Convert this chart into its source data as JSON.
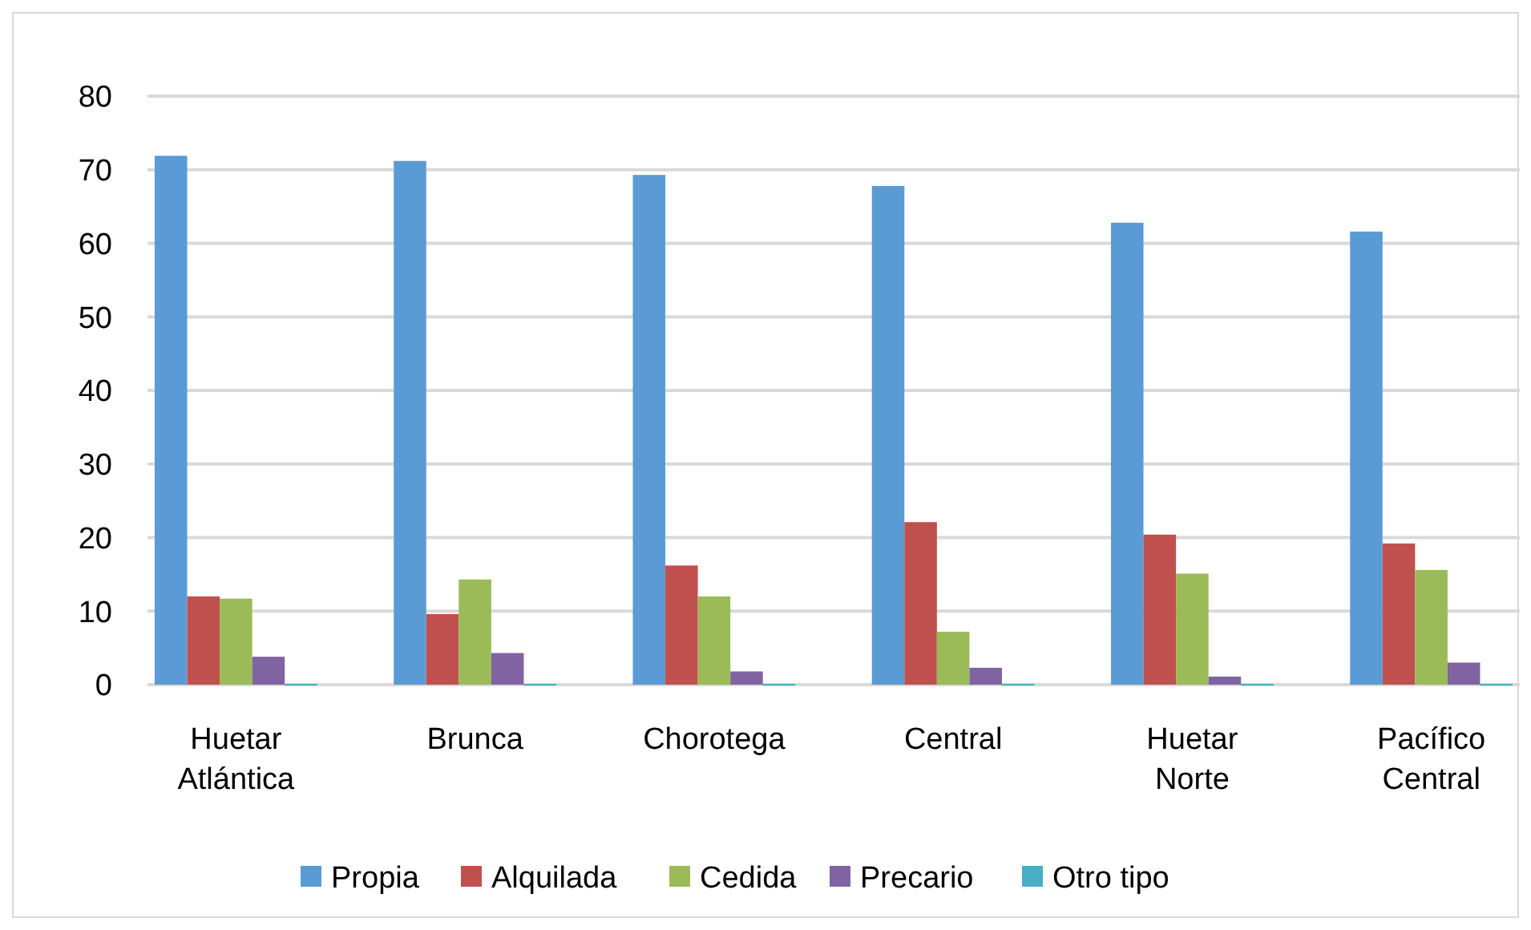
{
  "chart_data": {
    "type": "bar",
    "categories": [
      "Huetar Atlántica",
      "Brunca",
      "Chorotega",
      "Central",
      "Huetar Norte",
      "Pacífico Central"
    ],
    "series": [
      {
        "name": "Propia",
        "color": "#5b9bd5",
        "values": [
          71.9,
          71.2,
          69.3,
          67.8,
          62.8,
          61.6
        ]
      },
      {
        "name": "Alquilada",
        "color": "#c0504d",
        "values": [
          12.0,
          9.6,
          16.2,
          22.1,
          20.4,
          19.2
        ]
      },
      {
        "name": "Cedida",
        "color": "#9bbb59",
        "values": [
          11.7,
          14.3,
          12.0,
          7.2,
          15.1,
          15.6
        ]
      },
      {
        "name": "Precario",
        "color": "#8064a2",
        "values": [
          3.8,
          4.3,
          1.8,
          2.3,
          1.1,
          3.0
        ]
      },
      {
        "name": "Otro tipo",
        "color": "#4bacc6",
        "values": [
          0.1,
          0.1,
          0.1,
          0.1,
          0.1,
          0.1
        ]
      }
    ],
    "ylim": [
      0,
      80
    ],
    "yticks": [
      0,
      10,
      20,
      30,
      40,
      50,
      60,
      70,
      80
    ],
    "grid": "y",
    "legend": "bottom"
  }
}
